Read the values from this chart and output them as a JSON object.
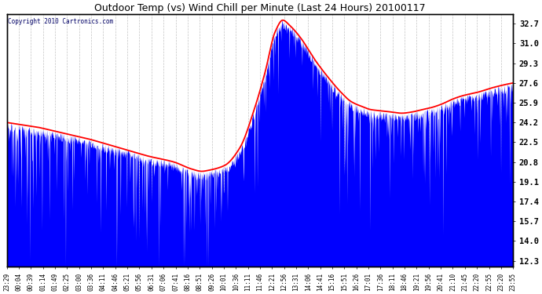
{
  "title": "Outdoor Temp (vs) Wind Chill per Minute (Last 24 Hours) 20100117",
  "copyright": "Copyright 2010 Cartronics.com",
  "ylabel_right": [
    "32.7",
    "31.0",
    "29.3",
    "27.6",
    "25.9",
    "24.2",
    "22.5",
    "20.8",
    "19.1",
    "17.4",
    "15.7",
    "14.0",
    "12.3"
  ],
  "ytick_values": [
    32.7,
    31.0,
    29.3,
    27.6,
    25.9,
    24.2,
    22.5,
    20.8,
    19.1,
    17.4,
    15.7,
    14.0,
    12.3
  ],
  "ylim": [
    11.8,
    33.5
  ],
  "xtick_labels": [
    "23:29",
    "00:04",
    "00:39",
    "01:14",
    "01:49",
    "02:25",
    "03:00",
    "03:36",
    "04:11",
    "04:46",
    "05:21",
    "05:56",
    "06:31",
    "07:06",
    "07:41",
    "08:16",
    "08:51",
    "09:26",
    "10:01",
    "10:36",
    "11:11",
    "11:46",
    "12:21",
    "12:56",
    "13:31",
    "14:06",
    "14:41",
    "15:16",
    "15:51",
    "16:26",
    "17:01",
    "17:36",
    "18:11",
    "18:46",
    "19:21",
    "19:56",
    "20:41",
    "21:10",
    "21:45",
    "22:20",
    "22:55",
    "23:20",
    "23:55"
  ],
  "background_color": "#ffffff",
  "plot_bg_color": "#ffffff",
  "grid_color": "#aaaaaa",
  "blue_color": "#0000ff",
  "red_color": "#ff0000",
  "title_color": "#000000",
  "n_points": 1440,
  "red_curve_knots_t": [
    0.0,
    0.03,
    0.06,
    0.09,
    0.12,
    0.16,
    0.2,
    0.24,
    0.28,
    0.33,
    0.365,
    0.385,
    0.4,
    0.43,
    0.46,
    0.49,
    0.51,
    0.53,
    0.545,
    0.56,
    0.58,
    0.61,
    0.64,
    0.66,
    0.68,
    0.7,
    0.72,
    0.74,
    0.76,
    0.78,
    0.8,
    0.82,
    0.84,
    0.86,
    0.88,
    0.9,
    0.93,
    0.96,
    1.0
  ],
  "red_curve_knots_v": [
    24.2,
    24.0,
    23.8,
    23.5,
    23.2,
    22.8,
    22.3,
    21.8,
    21.3,
    20.8,
    20.2,
    20.0,
    20.1,
    20.5,
    22.0,
    25.5,
    28.5,
    32.0,
    33.0,
    32.5,
    31.5,
    29.5,
    27.8,
    26.8,
    26.0,
    25.6,
    25.3,
    25.2,
    25.1,
    25.0,
    25.1,
    25.3,
    25.5,
    25.8,
    26.2,
    26.5,
    26.8,
    27.2,
    27.6
  ]
}
